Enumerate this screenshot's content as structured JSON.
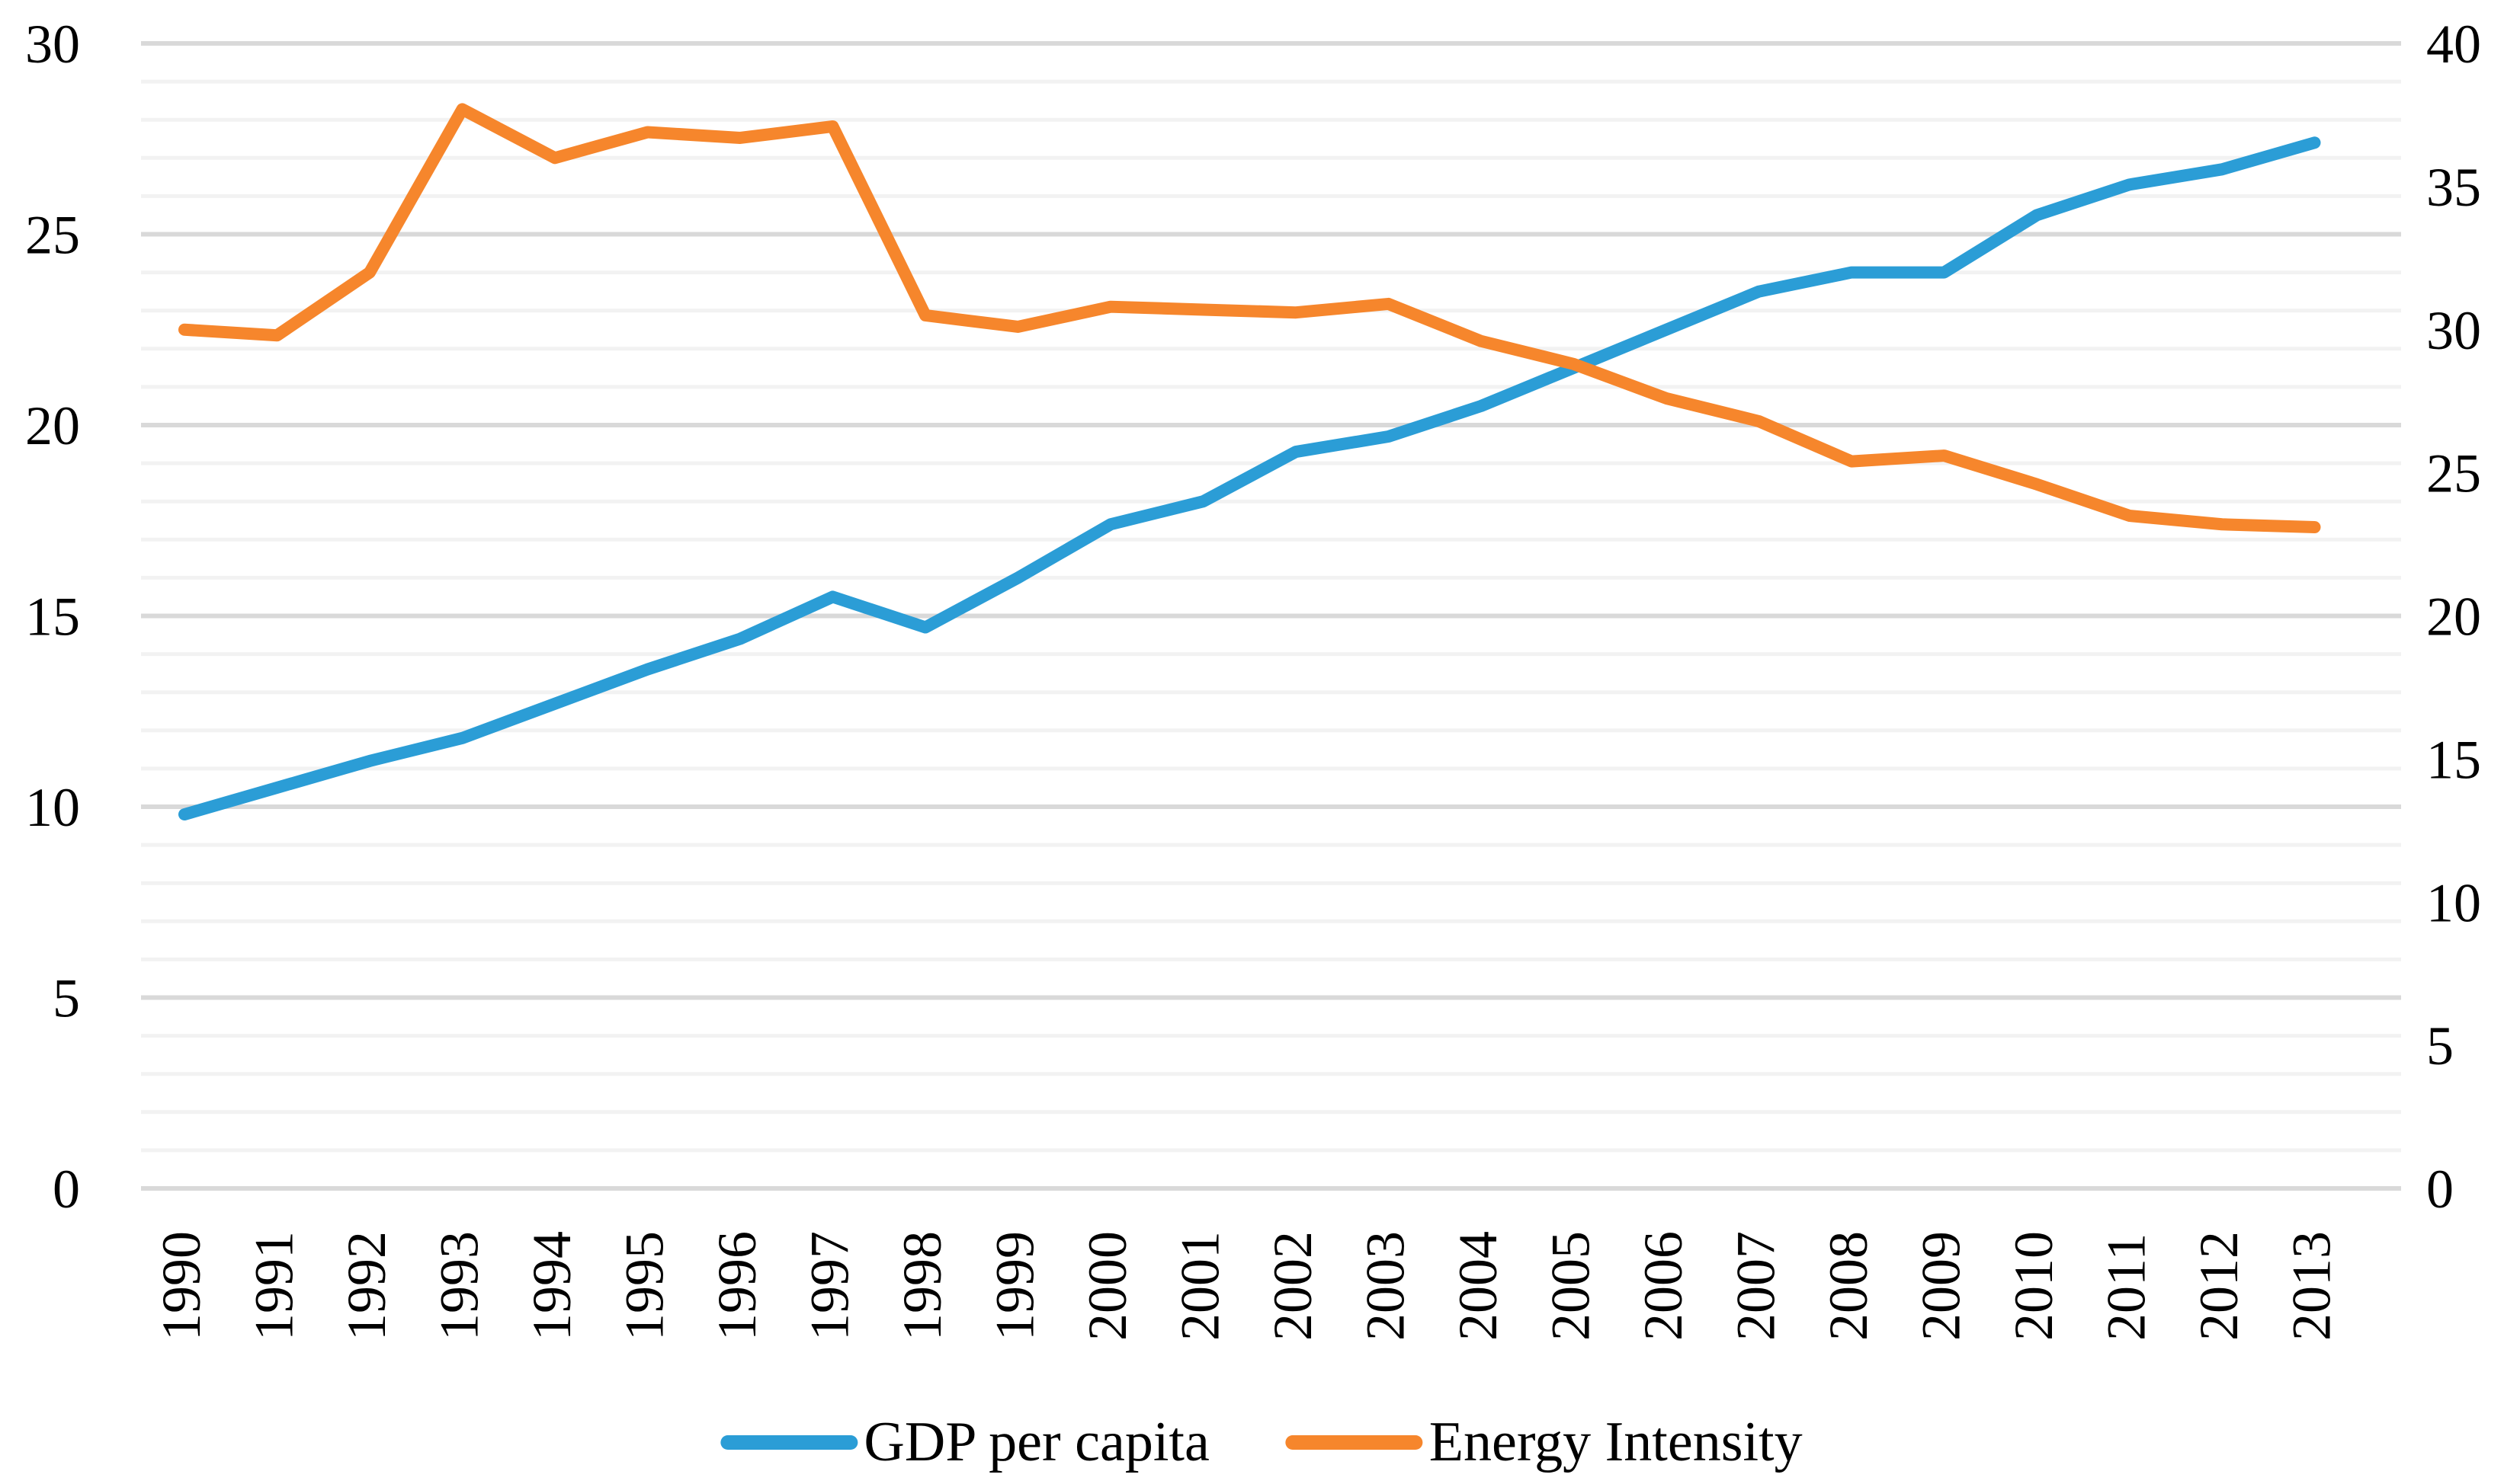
{
  "chart_data": {
    "type": "line",
    "title": "",
    "xlabel": "",
    "ylabel_left": "",
    "ylabel_right": "",
    "categories": [
      1990,
      1991,
      1992,
      1993,
      1994,
      1995,
      1996,
      1997,
      1998,
      1999,
      2000,
      2001,
      2002,
      2003,
      2004,
      2005,
      2006,
      2007,
      2008,
      2009,
      2010,
      2011,
      2012,
      2013
    ],
    "series": [
      {
        "name": "GDP per capita",
        "axis": "left",
        "color": "#2B9DD6",
        "values": [
          9.8,
          10.5,
          11.2,
          11.8,
          12.7,
          13.6,
          14.4,
          15.5,
          14.7,
          16.0,
          17.4,
          18.0,
          19.3,
          19.7,
          20.5,
          21.5,
          22.5,
          23.5,
          24.0,
          24.0,
          25.5,
          26.3,
          26.7,
          27.4
        ]
      },
      {
        "name": "Energy Intensity",
        "axis": "right",
        "color": "#F6862C",
        "values": [
          30.0,
          29.8,
          32.0,
          37.7,
          36.0,
          36.9,
          36.7,
          37.1,
          30.5,
          30.1,
          30.8,
          30.7,
          30.6,
          30.9,
          29.6,
          28.8,
          27.6,
          26.8,
          25.4,
          25.6,
          24.6,
          23.5,
          23.2,
          23.1
        ]
      }
    ],
    "left_axis": {
      "min": 0,
      "max": 30,
      "major_step": 5,
      "minor_step": 1,
      "ticks": [
        30,
        25,
        20,
        15,
        10,
        5,
        0
      ]
    },
    "right_axis": {
      "min": 0,
      "max": 40,
      "major_step": 5,
      "ticks": [
        40,
        35,
        30,
        25,
        20,
        15,
        10,
        5,
        0
      ]
    },
    "grid": {
      "on": true,
      "minor_color": "#F2F2F2",
      "major_color": "#D9D9D9"
    },
    "legend_position": "bottom",
    "legend": [
      "GDP per capita",
      "Energy Intensity"
    ]
  }
}
